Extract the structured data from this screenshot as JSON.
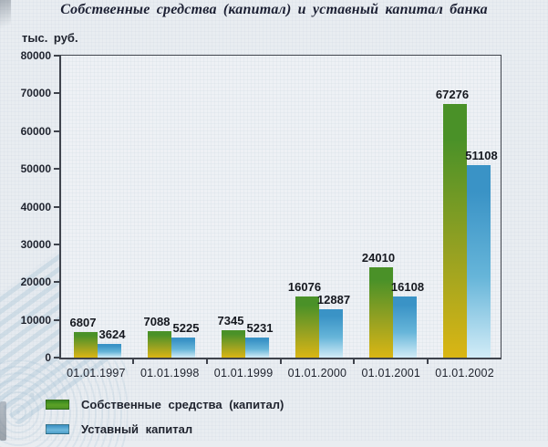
{
  "title": "Собственные средства (капитал) и уставный капитал банка",
  "y_axis_unit": "тыс. руб.",
  "chart_data": {
    "type": "bar",
    "categories": [
      "01.01.1997",
      "01.01.1998",
      "01.01.1999",
      "01.01.2000",
      "01.01.2001",
      "01.01.2002"
    ],
    "series": [
      {
        "name": "Собственные средства (капитал)",
        "values": [
          6807,
          7088,
          7345,
          16076,
          24010,
          67276
        ],
        "gradient_top": "#4a9128",
        "gradient_mid": "#95a122",
        "gradient_bottom": "#dab614"
      },
      {
        "name": "Уставный капитал",
        "values": [
          3624,
          5225,
          5231,
          12887,
          16108,
          51108
        ],
        "gradient_top": "#3a93c6",
        "gradient_mid": "#66b5d9",
        "gradient_bottom": "#d2ecf7"
      }
    ],
    "ylim": [
      0,
      80000
    ],
    "y_ticks": [
      0,
      10000,
      20000,
      30000,
      40000,
      50000,
      60000,
      70000,
      80000
    ],
    "grid": false,
    "value_labels": true,
    "legend_position": "bottom-left"
  },
  "legend": {
    "items": [
      {
        "label": "Собственные средства (капитал)"
      },
      {
        "label": "Уставный капитал"
      }
    ]
  }
}
